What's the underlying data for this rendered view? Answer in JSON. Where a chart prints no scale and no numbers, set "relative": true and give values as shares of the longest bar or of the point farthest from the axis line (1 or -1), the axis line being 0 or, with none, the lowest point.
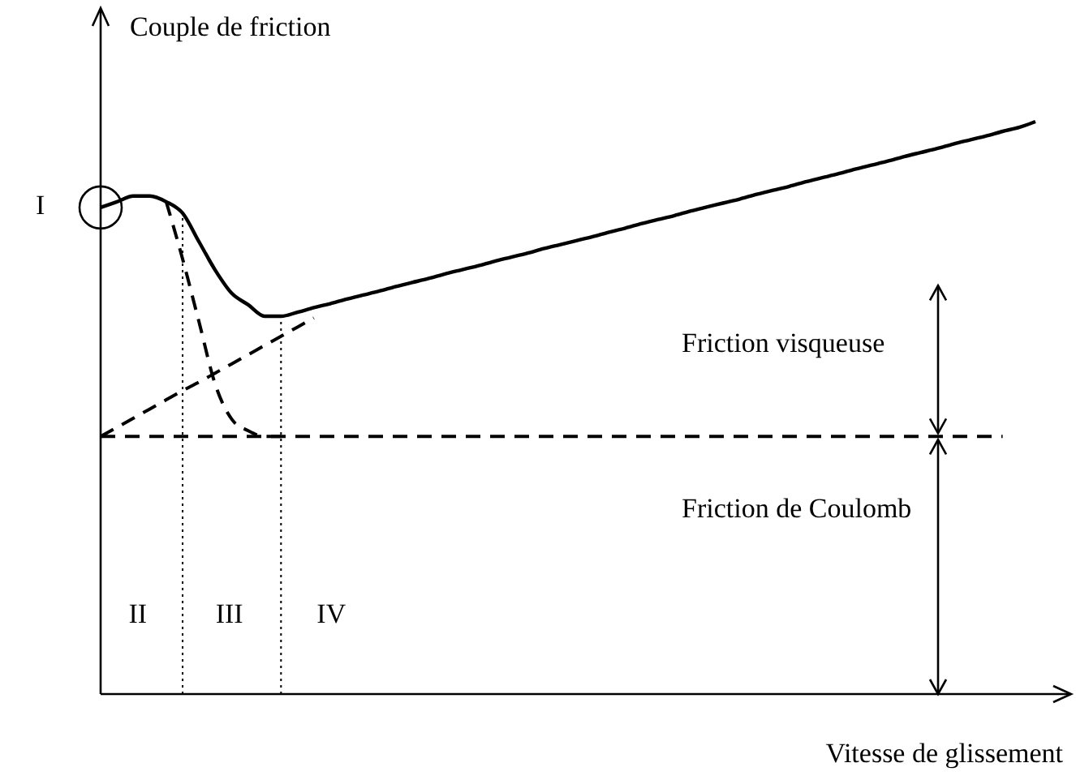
{
  "chart_data": {
    "type": "line",
    "relative": true,
    "xlabel": "Vitesse de glissement",
    "ylabel": "Couple de friction",
    "categories": [
      null,
      null,
      null,
      null,
      null,
      null,
      null,
      null,
      null,
      null,
      null,
      null,
      null,
      null,
      null,
      null,
      null,
      null,
      null,
      null,
      null,
      null,
      null,
      null,
      null,
      null,
      null,
      null,
      null,
      null,
      null,
      null,
      null,
      null,
      null,
      null,
      null,
      null,
      null,
      null,
      null,
      null,
      null,
      null,
      null,
      null,
      null,
      null,
      null,
      null,
      null,
      null,
      null,
      null,
      null,
      null,
      null,
      null
    ],
    "series": [
      {
        "color": "#000000",
        "line_style": "solid",
        "values": [
          0.85,
          0.86,
          0.87,
          0.87,
          0.86,
          0.84,
          0.79,
          0.74,
          0.7,
          0.68,
          0.66,
          0.66,
          0.667,
          0.675,
          0.682,
          0.69,
          0.697,
          0.704,
          0.712,
          0.719,
          0.726,
          0.734,
          0.741,
          0.748,
          0.756,
          0.763,
          0.77,
          0.778,
          0.785,
          0.792,
          0.799,
          0.807,
          0.814,
          0.822,
          0.829,
          0.836,
          0.844,
          0.851,
          0.858,
          0.865,
          0.873,
          0.88,
          0.887,
          0.895,
          0.902,
          0.909,
          0.917,
          0.924,
          0.931,
          0.939,
          0.946,
          0.953,
          0.961,
          0.968,
          0.975,
          0.983,
          0.99,
          1
        ]
      },
      {
        "color": "#000000",
        "line_style": "dashed",
        "values": [
          0.45,
          0.45,
          0.45,
          0.45,
          0.45,
          0.45,
          0.45,
          0.45,
          0.45,
          0.45,
          0.45,
          0.45,
          0.45,
          0.45,
          0.45,
          0.45,
          0.45,
          0.45,
          0.45,
          0.45,
          0.45,
          0.45,
          0.45,
          0.45,
          0.45,
          0.45,
          0.45,
          0.45,
          0.45,
          0.45,
          0.45,
          0.45,
          0.45,
          0.45,
          0.45,
          0.45,
          0.45,
          0.45,
          0.45,
          0.45,
          0.45,
          0.45,
          0.45,
          0.45,
          0.45,
          0.45,
          0.45,
          0.45,
          0.45,
          0.45,
          0.45,
          0.45,
          0.45,
          0.45,
          0.45,
          0.45,
          null,
          null
        ]
      },
      {
        "color": "#000000",
        "line_style": "dashed",
        "values": [
          0.45,
          0.466,
          0.482,
          0.498,
          0.514,
          0.53,
          0.545,
          0.561,
          0.577,
          0.593,
          0.609,
          0.625,
          0.641,
          0.657,
          null,
          null,
          null,
          null,
          null,
          null,
          null,
          null,
          null,
          null,
          null,
          null,
          null,
          null,
          null,
          null,
          null,
          null,
          null,
          null,
          null,
          null,
          null,
          null,
          null,
          null,
          null,
          null,
          null,
          null,
          null,
          null,
          null,
          null,
          null,
          null,
          null,
          null,
          null,
          null,
          null,
          null,
          null,
          null
        ]
      },
      {
        "color": "#000000",
        "line_style": "dashed",
        "values": [
          null,
          null,
          null,
          null,
          0.86,
          0.76,
          0.65,
          0.54,
          0.48,
          0.46,
          0.45,
          0.45,
          null,
          null,
          null,
          null,
          null,
          null,
          null,
          null,
          null,
          null,
          null,
          null,
          null,
          null,
          null,
          null,
          null,
          null,
          null,
          null,
          null,
          null,
          null,
          null,
          null,
          null,
          null,
          null,
          null,
          null,
          null,
          null,
          null,
          null,
          null,
          null,
          null,
          null,
          null,
          null,
          null,
          null,
          null,
          null,
          null,
          null
        ]
      }
    ],
    "annotations": [
      "I",
      "II",
      "III",
      "IV",
      "Friction visqueuse",
      "Friction de Coulomb"
    ]
  }
}
